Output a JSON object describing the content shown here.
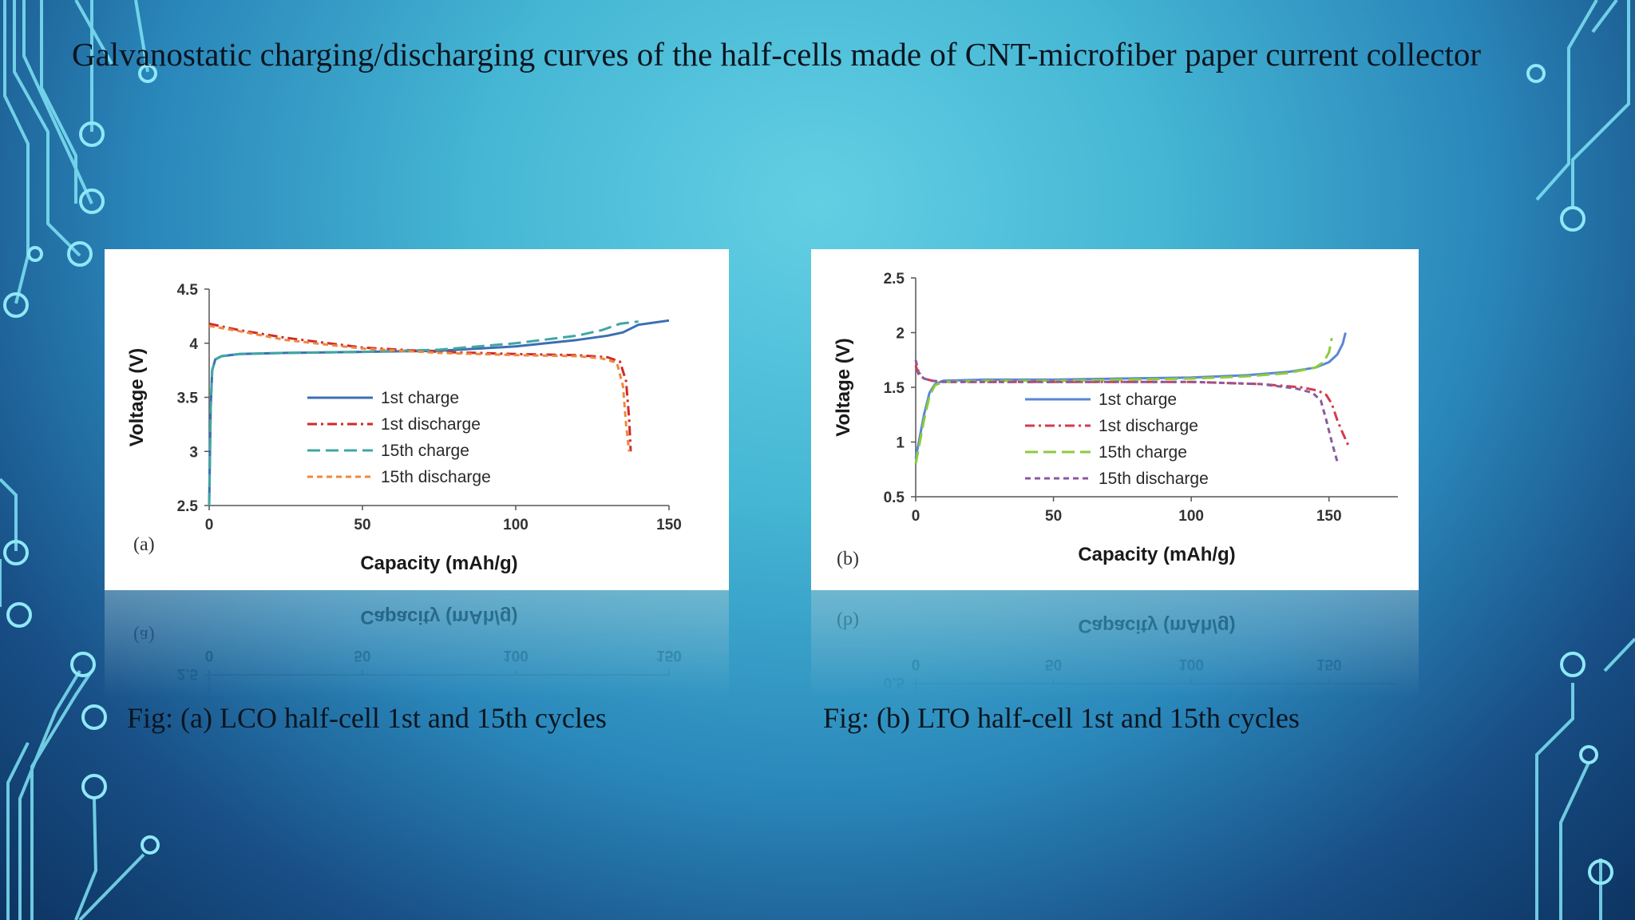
{
  "slide": {
    "title": "Galvanostatic charging/discharging curves of the half-cells made of CNT-microfiber paper current collector",
    "captions": [
      "Fig: (a) LCO half-cell 1st and 15th cycles",
      "Fig: (b) LTO half-cell 1st and 15th cycles"
    ]
  },
  "chart_data": [
    {
      "type": "line",
      "panel_label": "(a)",
      "xlabel": "Capacity (mAh/g)",
      "ylabel": "Voltage (V)",
      "xlim": [
        0,
        150
      ],
      "ylim": [
        2.5,
        4.5
      ],
      "xticks": [
        0,
        50,
        100,
        150
      ],
      "yticks": [
        2.5,
        3,
        3.5,
        4,
        4.5
      ],
      "legend_position": "center",
      "series": [
        {
          "name": "1st charge",
          "color": "#3c6eb4",
          "dash": "solid",
          "x": [
            0,
            0.5,
            1,
            2,
            4,
            10,
            25,
            50,
            75,
            100,
            120,
            130,
            135,
            140,
            145,
            150
          ],
          "y": [
            2.5,
            3.4,
            3.75,
            3.85,
            3.88,
            3.9,
            3.91,
            3.92,
            3.93,
            3.97,
            4.03,
            4.07,
            4.1,
            4.17,
            4.19,
            4.21
          ]
        },
        {
          "name": "1st discharge",
          "color": "#d02a2a",
          "dash": "12,5,3,5",
          "x": [
            0,
            10,
            25,
            50,
            75,
            100,
            120,
            130,
            134,
            136,
            137,
            137.5
          ],
          "y": [
            4.18,
            4.12,
            4.05,
            3.96,
            3.92,
            3.9,
            3.89,
            3.87,
            3.83,
            3.65,
            3.3,
            3.0
          ]
        },
        {
          "name": "15th charge",
          "color": "#3fa7a4",
          "dash": "16,7",
          "x": [
            0,
            0.5,
            1,
            2,
            4,
            10,
            25,
            50,
            75,
            100,
            120,
            128,
            134,
            140
          ],
          "y": [
            2.5,
            3.4,
            3.75,
            3.85,
            3.88,
            3.9,
            3.91,
            3.92,
            3.94,
            4.0,
            4.07,
            4.12,
            4.18,
            4.2
          ]
        },
        {
          "name": "15th discharge",
          "color": "#f0883c",
          "dash": "7,5",
          "x": [
            0,
            10,
            25,
            50,
            75,
            100,
            120,
            128,
            133,
            135,
            136,
            137
          ],
          "y": [
            4.16,
            4.11,
            4.03,
            3.95,
            3.91,
            3.89,
            3.88,
            3.86,
            3.82,
            3.6,
            3.25,
            3.0
          ]
        }
      ]
    },
    {
      "type": "line",
      "panel_label": "(b)",
      "xlabel": "Capacity (mAh/g)",
      "ylabel": "Voltage (V)",
      "xlim": [
        0,
        175
      ],
      "ylim": [
        0.5,
        2.5
      ],
      "xticks": [
        0,
        50,
        100,
        150
      ],
      "yticks": [
        0.5,
        1,
        1.5,
        2,
        2.5
      ],
      "legend_position": "right-center",
      "series": [
        {
          "name": "1st charge",
          "color": "#5b86d6",
          "dash": "solid",
          "x": [
            0,
            3,
            5,
            7,
            10,
            25,
            50,
            75,
            100,
            120,
            135,
            145,
            150,
            153,
            155,
            156
          ],
          "y": [
            0.85,
            1.25,
            1.45,
            1.53,
            1.56,
            1.57,
            1.57,
            1.58,
            1.59,
            1.61,
            1.64,
            1.68,
            1.73,
            1.8,
            1.9,
            2.0
          ]
        },
        {
          "name": "1st discharge",
          "color": "#d43b4c",
          "dash": "12,5,3,5",
          "x": [
            0,
            1,
            3,
            6,
            10,
            25,
            50,
            75,
            100,
            125,
            140,
            146,
            149,
            151,
            153,
            155,
            157
          ],
          "y": [
            1.7,
            1.62,
            1.58,
            1.56,
            1.55,
            1.55,
            1.55,
            1.55,
            1.55,
            1.53,
            1.5,
            1.47,
            1.43,
            1.35,
            1.2,
            1.08,
            0.97
          ]
        },
        {
          "name": "15th charge",
          "color": "#8ccb3c",
          "dash": "16,7",
          "x": [
            0,
            3,
            5,
            7,
            10,
            25,
            50,
            75,
            100,
            120,
            135,
            145,
            148,
            150,
            151
          ],
          "y": [
            0.8,
            1.2,
            1.42,
            1.52,
            1.55,
            1.56,
            1.56,
            1.57,
            1.58,
            1.6,
            1.63,
            1.68,
            1.73,
            1.82,
            1.95
          ]
        },
        {
          "name": "15th discharge",
          "color": "#8a5a9e",
          "dash": "7,5",
          "x": [
            0,
            1,
            3,
            6,
            10,
            25,
            50,
            75,
            100,
            125,
            138,
            144,
            147,
            149,
            151,
            153
          ],
          "y": [
            1.75,
            1.64,
            1.58,
            1.56,
            1.55,
            1.55,
            1.55,
            1.55,
            1.55,
            1.53,
            1.49,
            1.45,
            1.38,
            1.2,
            1.0,
            0.82
          ]
        }
      ]
    }
  ]
}
